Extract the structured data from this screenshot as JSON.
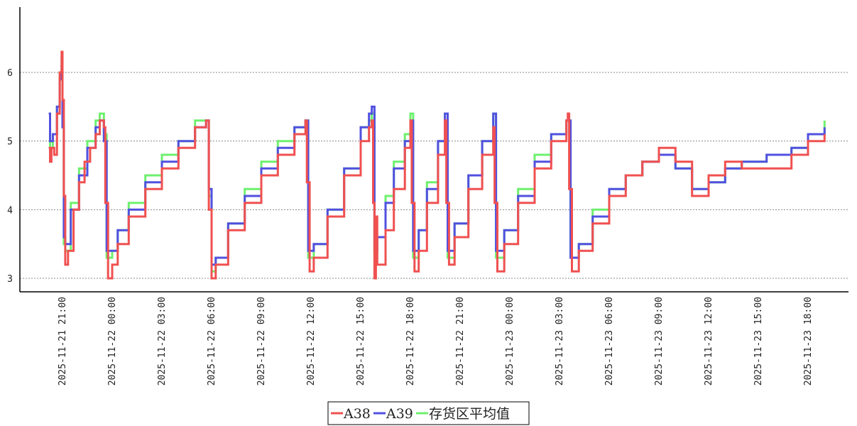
{
  "chart_data": {
    "type": "line",
    "title": "",
    "xlabel": "",
    "ylabel": "",
    "ylim": [
      2.8,
      6.95
    ],
    "yticks": [
      3,
      4,
      5,
      6
    ],
    "ytick_labels": [
      "3",
      "4",
      "5",
      "6"
    ],
    "xticks": [
      "2025-11-21 21:00",
      "2025-11-22 00:00",
      "2025-11-22 03:00",
      "2025-11-22 06:00",
      "2025-11-22 09:00",
      "2025-11-22 12:00",
      "2025-11-22 15:00",
      "2025-11-22 18:00",
      "2025-11-22 21:00",
      "2025-11-23 00:00",
      "2025-11-23 03:00",
      "2025-11-23 06:00",
      "2025-11-23 09:00",
      "2025-11-23 12:00",
      "2025-11-23 15:00",
      "2025-11-23 18:00"
    ],
    "grid": "horizontal dashed",
    "legend_position": "bottom-center",
    "series": [
      {
        "name": "A38",
        "color": "#f05050",
        "step": true,
        "points": [
          [
            "2025-11-21 20:10",
            4.9
          ],
          [
            "2025-11-21 20:15",
            4.7
          ],
          [
            "2025-11-21 20:20",
            4.9
          ],
          [
            "2025-11-21 20:30",
            4.8
          ],
          [
            "2025-11-21 20:40",
            5.4
          ],
          [
            "2025-11-21 20:50",
            6.0
          ],
          [
            "2025-11-21 20:57",
            6.3
          ],
          [
            "2025-11-21 21:00",
            5.6
          ],
          [
            "2025-11-21 21:05",
            4.2
          ],
          [
            "2025-11-21 21:10",
            3.2
          ],
          [
            "2025-11-21 21:20",
            3.4
          ],
          [
            "2025-11-21 21:40",
            4.0
          ],
          [
            "2025-11-21 22:00",
            4.4
          ],
          [
            "2025-11-21 22:20",
            4.7
          ],
          [
            "2025-11-21 22:40",
            4.9
          ],
          [
            "2025-11-21 23:00",
            5.1
          ],
          [
            "2025-11-21 23:15",
            5.3
          ],
          [
            "2025-11-21 23:30",
            5.2
          ],
          [
            "2025-11-21 23:35",
            4.1
          ],
          [
            "2025-11-21 23:45",
            3.0
          ],
          [
            "2025-11-22 00:00",
            3.2
          ],
          [
            "2025-11-22 00:20",
            3.5
          ],
          [
            "2025-11-22 01:00",
            3.9
          ],
          [
            "2025-11-22 02:00",
            4.3
          ],
          [
            "2025-11-22 03:00",
            4.6
          ],
          [
            "2025-11-22 04:00",
            4.9
          ],
          [
            "2025-11-22 05:00",
            5.2
          ],
          [
            "2025-11-22 05:40",
            5.3
          ],
          [
            "2025-11-22 05:50",
            4.0
          ],
          [
            "2025-11-22 06:00",
            3.0
          ],
          [
            "2025-11-22 06:15",
            3.2
          ],
          [
            "2025-11-22 07:00",
            3.7
          ],
          [
            "2025-11-22 08:00",
            4.1
          ],
          [
            "2025-11-22 09:00",
            4.5
          ],
          [
            "2025-11-22 10:00",
            4.8
          ],
          [
            "2025-11-22 11:00",
            5.1
          ],
          [
            "2025-11-22 11:40",
            5.3
          ],
          [
            "2025-11-22 11:45",
            4.4
          ],
          [
            "2025-11-22 11:55",
            3.1
          ],
          [
            "2025-11-22 12:10",
            3.3
          ],
          [
            "2025-11-22 13:00",
            3.9
          ],
          [
            "2025-11-22 14:00",
            4.5
          ],
          [
            "2025-11-22 15:00",
            5.0
          ],
          [
            "2025-11-22 15:30",
            5.2
          ],
          [
            "2025-11-22 15:40",
            5.3
          ],
          [
            "2025-11-22 15:45",
            4.1
          ],
          [
            "2025-11-22 15:50",
            3.0
          ],
          [
            "2025-11-22 15:55",
            3.9
          ],
          [
            "2025-11-22 16:00",
            3.2
          ],
          [
            "2025-11-22 16:30",
            3.7
          ],
          [
            "2025-11-22 17:00",
            4.3
          ],
          [
            "2025-11-22 17:40",
            4.9
          ],
          [
            "2025-11-22 18:00",
            5.3
          ],
          [
            "2025-11-22 18:05",
            4.1
          ],
          [
            "2025-11-22 18:15",
            3.1
          ],
          [
            "2025-11-22 18:30",
            3.4
          ],
          [
            "2025-11-22 19:00",
            4.1
          ],
          [
            "2025-11-22 19:40",
            4.8
          ],
          [
            "2025-11-22 20:05",
            5.3
          ],
          [
            "2025-11-22 20:10",
            4.1
          ],
          [
            "2025-11-22 20:20",
            3.2
          ],
          [
            "2025-11-22 20:40",
            3.6
          ],
          [
            "2025-11-22 21:30",
            4.3
          ],
          [
            "2025-11-22 22:20",
            4.8
          ],
          [
            "2025-11-22 23:00",
            5.2
          ],
          [
            "2025-11-22 23:05",
            4.1
          ],
          [
            "2025-11-22 23:15",
            3.1
          ],
          [
            "2025-11-22 23:40",
            3.5
          ],
          [
            "2025-11-23 00:30",
            4.1
          ],
          [
            "2025-11-23 01:30",
            4.6
          ],
          [
            "2025-11-23 02:30",
            5.0
          ],
          [
            "2025-11-23 03:25",
            5.3
          ],
          [
            "2025-11-23 03:30",
            5.4
          ],
          [
            "2025-11-23 03:35",
            4.3
          ],
          [
            "2025-11-23 03:45",
            3.1
          ],
          [
            "2025-11-23 04:10",
            3.4
          ],
          [
            "2025-11-23 05:00",
            3.8
          ],
          [
            "2025-11-23 06:00",
            4.2
          ],
          [
            "2025-11-23 07:00",
            4.5
          ],
          [
            "2025-11-23 08:00",
            4.7
          ],
          [
            "2025-11-23 09:00",
            4.9
          ],
          [
            "2025-11-23 10:00",
            4.7
          ],
          [
            "2025-11-23 11:00",
            4.2
          ],
          [
            "2025-11-23 12:00",
            4.5
          ],
          [
            "2025-11-23 13:00",
            4.7
          ],
          [
            "2025-11-23 14:00",
            4.6
          ],
          [
            "2025-11-23 17:00",
            4.8
          ],
          [
            "2025-11-23 18:00",
            5.0
          ],
          [
            "2025-11-23 19:00",
            5.1
          ]
        ]
      },
      {
        "name": "A39",
        "color": "#5050e0",
        "step": true,
        "points": [
          [
            "2025-11-21 20:10",
            5.4
          ],
          [
            "2025-11-21 20:15",
            5.0
          ],
          [
            "2025-11-21 20:25",
            5.1
          ],
          [
            "2025-11-21 20:40",
            5.5
          ],
          [
            "2025-11-21 20:50",
            5.9
          ],
          [
            "2025-11-21 20:57",
            6.1
          ],
          [
            "2025-11-21 21:00",
            5.2
          ],
          [
            "2025-11-21 21:05",
            3.6
          ],
          [
            "2025-11-21 21:10",
            3.5
          ],
          [
            "2025-11-21 21:30",
            4.0
          ],
          [
            "2025-11-21 22:00",
            4.5
          ],
          [
            "2025-11-21 22:30",
            4.9
          ],
          [
            "2025-11-21 23:00",
            5.2
          ],
          [
            "2025-11-21 23:15",
            5.3
          ],
          [
            "2025-11-21 23:30",
            5.0
          ],
          [
            "2025-11-21 23:40",
            3.4
          ],
          [
            "2025-11-22 00:00",
            3.4
          ],
          [
            "2025-11-22 00:20",
            3.7
          ],
          [
            "2025-11-22 01:00",
            4.0
          ],
          [
            "2025-11-22 02:00",
            4.4
          ],
          [
            "2025-11-22 03:00",
            4.7
          ],
          [
            "2025-11-22 04:00",
            5.0
          ],
          [
            "2025-11-22 05:00",
            5.2
          ],
          [
            "2025-11-22 05:40",
            5.3
          ],
          [
            "2025-11-22 05:50",
            4.3
          ],
          [
            "2025-11-22 06:00",
            3.2
          ],
          [
            "2025-11-22 06:15",
            3.3
          ],
          [
            "2025-11-22 07:00",
            3.8
          ],
          [
            "2025-11-22 08:00",
            4.2
          ],
          [
            "2025-11-22 09:00",
            4.6
          ],
          [
            "2025-11-22 10:00",
            4.9
          ],
          [
            "2025-11-22 11:00",
            5.2
          ],
          [
            "2025-11-22 11:40",
            5.3
          ],
          [
            "2025-11-22 11:50",
            3.4
          ],
          [
            "2025-11-22 12:10",
            3.5
          ],
          [
            "2025-11-22 13:00",
            4.0
          ],
          [
            "2025-11-22 14:00",
            4.6
          ],
          [
            "2025-11-22 15:00",
            5.2
          ],
          [
            "2025-11-22 15:30",
            5.4
          ],
          [
            "2025-11-22 15:40",
            5.5
          ],
          [
            "2025-11-22 15:50",
            3.4
          ],
          [
            "2025-11-22 16:00",
            3.6
          ],
          [
            "2025-11-22 16:30",
            4.1
          ],
          [
            "2025-11-22 17:00",
            4.6
          ],
          [
            "2025-11-22 17:40",
            5.0
          ],
          [
            "2025-11-22 18:00",
            5.3
          ],
          [
            "2025-11-22 18:10",
            3.4
          ],
          [
            "2025-11-22 18:30",
            3.7
          ],
          [
            "2025-11-22 19:00",
            4.3
          ],
          [
            "2025-11-22 19:40",
            5.0
          ],
          [
            "2025-11-22 20:05",
            5.4
          ],
          [
            "2025-11-22 20:15",
            3.4
          ],
          [
            "2025-11-22 20:40",
            3.8
          ],
          [
            "2025-11-22 21:30",
            4.5
          ],
          [
            "2025-11-22 22:20",
            5.0
          ],
          [
            "2025-11-22 23:00",
            5.4
          ],
          [
            "2025-11-22 23:10",
            3.4
          ],
          [
            "2025-11-22 23:40",
            3.7
          ],
          [
            "2025-11-23 00:30",
            4.2
          ],
          [
            "2025-11-23 01:30",
            4.7
          ],
          [
            "2025-11-23 02:30",
            5.1
          ],
          [
            "2025-11-23 03:25",
            5.3
          ],
          [
            "2025-11-23 03:40",
            3.3
          ],
          [
            "2025-11-23 04:10",
            3.5
          ],
          [
            "2025-11-23 05:00",
            3.9
          ],
          [
            "2025-11-23 06:00",
            4.3
          ],
          [
            "2025-11-23 07:00",
            4.5
          ],
          [
            "2025-11-23 08:00",
            4.7
          ],
          [
            "2025-11-23 09:00",
            4.8
          ],
          [
            "2025-11-23 10:00",
            4.6
          ],
          [
            "2025-11-23 11:00",
            4.3
          ],
          [
            "2025-11-23 12:00",
            4.4
          ],
          [
            "2025-11-23 13:00",
            4.6
          ],
          [
            "2025-11-23 14:00",
            4.7
          ],
          [
            "2025-11-23 15:30",
            4.8
          ],
          [
            "2025-11-23 17:00",
            4.9
          ],
          [
            "2025-11-23 18:00",
            5.1
          ],
          [
            "2025-11-23 19:00",
            5.2
          ]
        ]
      },
      {
        "name": "存货区平均值",
        "color": "#6ef06e",
        "step": true,
        "points": [
          [
            "2025-11-21 20:10",
            5.0
          ],
          [
            "2025-11-21 20:15",
            4.9
          ],
          [
            "2025-11-21 20:25",
            5.1
          ],
          [
            "2025-11-21 20:40",
            5.5
          ],
          [
            "2025-11-21 20:50",
            6.0
          ],
          [
            "2025-11-21 20:57",
            6.2
          ],
          [
            "2025-11-21 21:00",
            5.3
          ],
          [
            "2025-11-21 21:05",
            3.5
          ],
          [
            "2025-11-21 21:10",
            3.4
          ],
          [
            "2025-11-21 21:30",
            4.1
          ],
          [
            "2025-11-21 22:00",
            4.6
          ],
          [
            "2025-11-21 22:30",
            5.0
          ],
          [
            "2025-11-21 23:00",
            5.3
          ],
          [
            "2025-11-21 23:15",
            5.4
          ],
          [
            "2025-11-21 23:30",
            5.1
          ],
          [
            "2025-11-21 23:40",
            3.3
          ],
          [
            "2025-11-22 00:00",
            3.4
          ],
          [
            "2025-11-22 00:20",
            3.7
          ],
          [
            "2025-11-22 01:00",
            4.1
          ],
          [
            "2025-11-22 02:00",
            4.5
          ],
          [
            "2025-11-22 03:00",
            4.8
          ],
          [
            "2025-11-22 04:00",
            5.0
          ],
          [
            "2025-11-22 05:00",
            5.3
          ],
          [
            "2025-11-22 05:40",
            5.3
          ],
          [
            "2025-11-22 05:50",
            4.2
          ],
          [
            "2025-11-22 06:00",
            3.1
          ],
          [
            "2025-11-22 06:15",
            3.3
          ],
          [
            "2025-11-22 07:00",
            3.8
          ],
          [
            "2025-11-22 08:00",
            4.3
          ],
          [
            "2025-11-22 09:00",
            4.7
          ],
          [
            "2025-11-22 10:00",
            5.0
          ],
          [
            "2025-11-22 11:00",
            5.2
          ],
          [
            "2025-11-22 11:40",
            5.3
          ],
          [
            "2025-11-22 11:50",
            3.3
          ],
          [
            "2025-11-22 12:10",
            3.5
          ],
          [
            "2025-11-22 13:00",
            4.0
          ],
          [
            "2025-11-22 14:00",
            4.6
          ],
          [
            "2025-11-22 15:00",
            5.2
          ],
          [
            "2025-11-22 15:30",
            5.3
          ],
          [
            "2025-11-22 15:40",
            5.4
          ],
          [
            "2025-11-22 15:50",
            3.3
          ],
          [
            "2025-11-22 16:00",
            3.6
          ],
          [
            "2025-11-22 16:30",
            4.2
          ],
          [
            "2025-11-22 17:00",
            4.7
          ],
          [
            "2025-11-22 17:40",
            5.1
          ],
          [
            "2025-11-22 18:00",
            5.4
          ],
          [
            "2025-11-22 18:10",
            3.3
          ],
          [
            "2025-11-22 18:30",
            3.7
          ],
          [
            "2025-11-22 19:00",
            4.4
          ],
          [
            "2025-11-22 19:40",
            5.0
          ],
          [
            "2025-11-22 20:05",
            5.4
          ],
          [
            "2025-11-22 20:15",
            3.3
          ],
          [
            "2025-11-22 20:40",
            3.8
          ],
          [
            "2025-11-22 21:30",
            4.5
          ],
          [
            "2025-11-22 22:20",
            5.0
          ],
          [
            "2025-11-22 23:00",
            5.4
          ],
          [
            "2025-11-22 23:10",
            3.3
          ],
          [
            "2025-11-22 23:40",
            3.7
          ],
          [
            "2025-11-23 00:30",
            4.3
          ],
          [
            "2025-11-23 01:30",
            4.8
          ],
          [
            "2025-11-23 02:30",
            5.1
          ],
          [
            "2025-11-23 03:25",
            5.3
          ],
          [
            "2025-11-23 03:40",
            3.3
          ],
          [
            "2025-11-23 04:10",
            3.5
          ],
          [
            "2025-11-23 05:00",
            4.0
          ],
          [
            "2025-11-23 06:00",
            4.3
          ],
          [
            "2025-11-23 07:00",
            4.5
          ],
          [
            "2025-11-23 08:00",
            4.7
          ],
          [
            "2025-11-23 09:00",
            4.8
          ],
          [
            "2025-11-23 10:00",
            4.6
          ],
          [
            "2025-11-23 11:00",
            4.3
          ],
          [
            "2025-11-23 12:00",
            4.4
          ],
          [
            "2025-11-23 13:00",
            4.6
          ],
          [
            "2025-11-23 14:00",
            4.7
          ],
          [
            "2025-11-23 15:30",
            4.8
          ],
          [
            "2025-11-23 17:00",
            4.9
          ],
          [
            "2025-11-23 18:00",
            5.1
          ],
          [
            "2025-11-23 19:00",
            5.3
          ]
        ]
      }
    ]
  }
}
